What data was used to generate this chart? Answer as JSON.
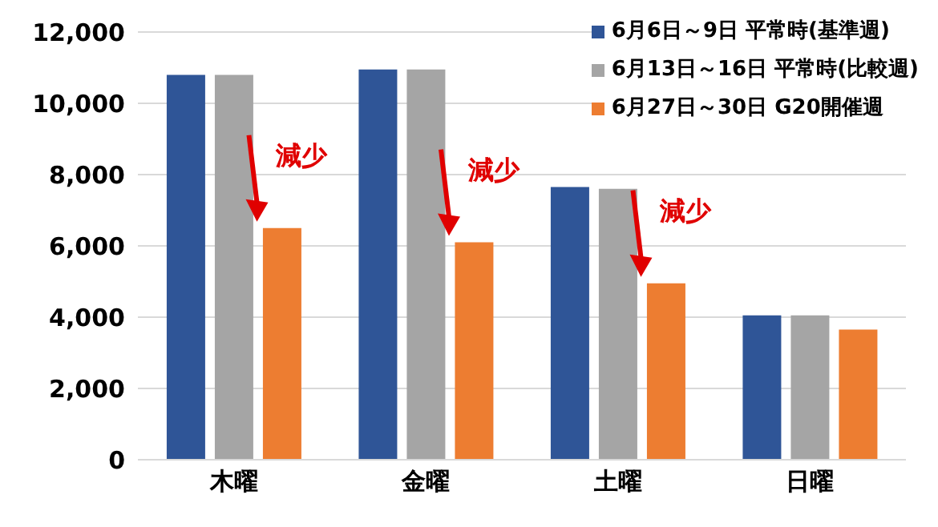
{
  "chart_data": {
    "type": "bar",
    "categories": [
      "木曜",
      "金曜",
      "土曜",
      "日曜"
    ],
    "series": [
      {
        "name": "6月6日～9日 平常時(基準週)",
        "color": "#2f5597",
        "values": [
          10800,
          10950,
          7650,
          4050
        ]
      },
      {
        "name": "6月13日～16日 平常時(比較週)",
        "color": "#a5a5a5",
        "values": [
          10800,
          10950,
          7600,
          4050
        ]
      },
      {
        "name": "6月27日～30日 G20開催週",
        "color": "#ed7d31",
        "values": [
          6500,
          6100,
          4950,
          3650
        ]
      }
    ],
    "ylim": [
      0,
      12000
    ],
    "yticks": [
      {
        "value": 0,
        "label": "0"
      },
      {
        "value": 2000,
        "label": "2,000"
      },
      {
        "value": 4000,
        "label": "4,000"
      },
      {
        "value": 6000,
        "label": "6,000"
      },
      {
        "value": 8000,
        "label": "8,000"
      },
      {
        "value": 10000,
        "label": "10,000"
      },
      {
        "value": 12000,
        "label": "12,000"
      }
    ],
    "grid": "y",
    "legend": "top right",
    "annotations": [
      "減少",
      "減少",
      "減少"
    ]
  }
}
